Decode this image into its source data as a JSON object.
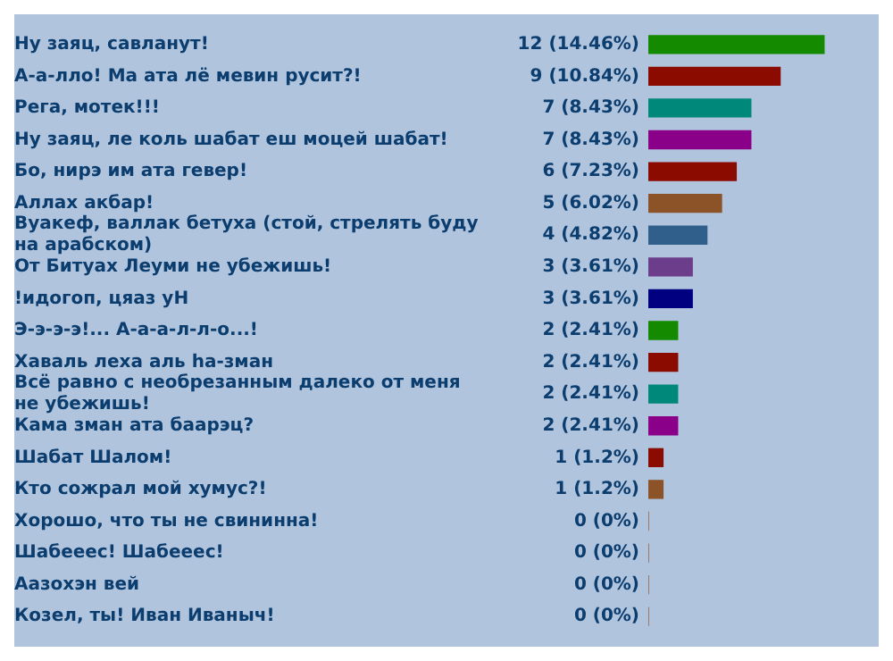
{
  "chart_data": {
    "type": "bar",
    "orientation": "horizontal",
    "categories": [
      "Ну заяц, савланут!",
      "А-а-лло! Ма ата лё мевин русит?!",
      "Рега, мотек!!!",
      "Ну заяц, ле коль шабат еш моцей шабат!",
      "Бо, нирэ им ата гевер!",
      "Аллах акбар!",
      "Вуакеф, валлак бетуха (стой, стрелять буду на арабском)",
      "От Битуах Леуми не убежишь!",
      "!идогоп, цяаз уН",
      "Э-э-э-э!... А-а-а-л-л-о...!",
      "Хаваль леха аль hа-зман",
      "Всё равно с необрезанным далеко от меня не убежишь!",
      "Кама зман ата баарэц?",
      "Шабат Шалом!",
      "Кто сожрал мой хумус?!",
      "Хорошо, что ты не свининна!",
      "Шабееес! Шабееес!",
      "Аазохэн вей",
      "Козел, ты! Иван Иваныч!"
    ],
    "values": [
      12,
      9,
      7,
      7,
      6,
      5,
      4,
      3,
      3,
      2,
      2,
      2,
      2,
      1,
      1,
      0,
      0,
      0,
      0
    ],
    "value_labels": [
      "12 (14.46%)",
      "9 (10.84%)",
      "7 (8.43%)",
      "7 (8.43%)",
      "6 (7.23%)",
      "5 (6.02%)",
      "4 (4.82%)",
      "3 (3.61%)",
      "3 (3.61%)",
      "2 (2.41%)",
      "2 (2.41%)",
      "2 (2.41%)",
      "2 (2.41%)",
      "1 (1.2%)",
      "1 (1.2%)",
      "0 (0%)",
      "0 (0%)",
      "0 (0%)",
      "0 (0%)"
    ],
    "colors": [
      "#138a00",
      "#8b0b00",
      "#00897b",
      "#8b0089",
      "#8b0b00",
      "#8b5327",
      "#2f5f8a",
      "#6c3d8a",
      "#000080",
      "#138a00",
      "#8b0b00",
      "#00897b",
      "#8b0089",
      "#8b0b00",
      "#8b5327",
      "#8b5327",
      "#8b5327",
      "#8b5327",
      "#8b5327"
    ]
  }
}
